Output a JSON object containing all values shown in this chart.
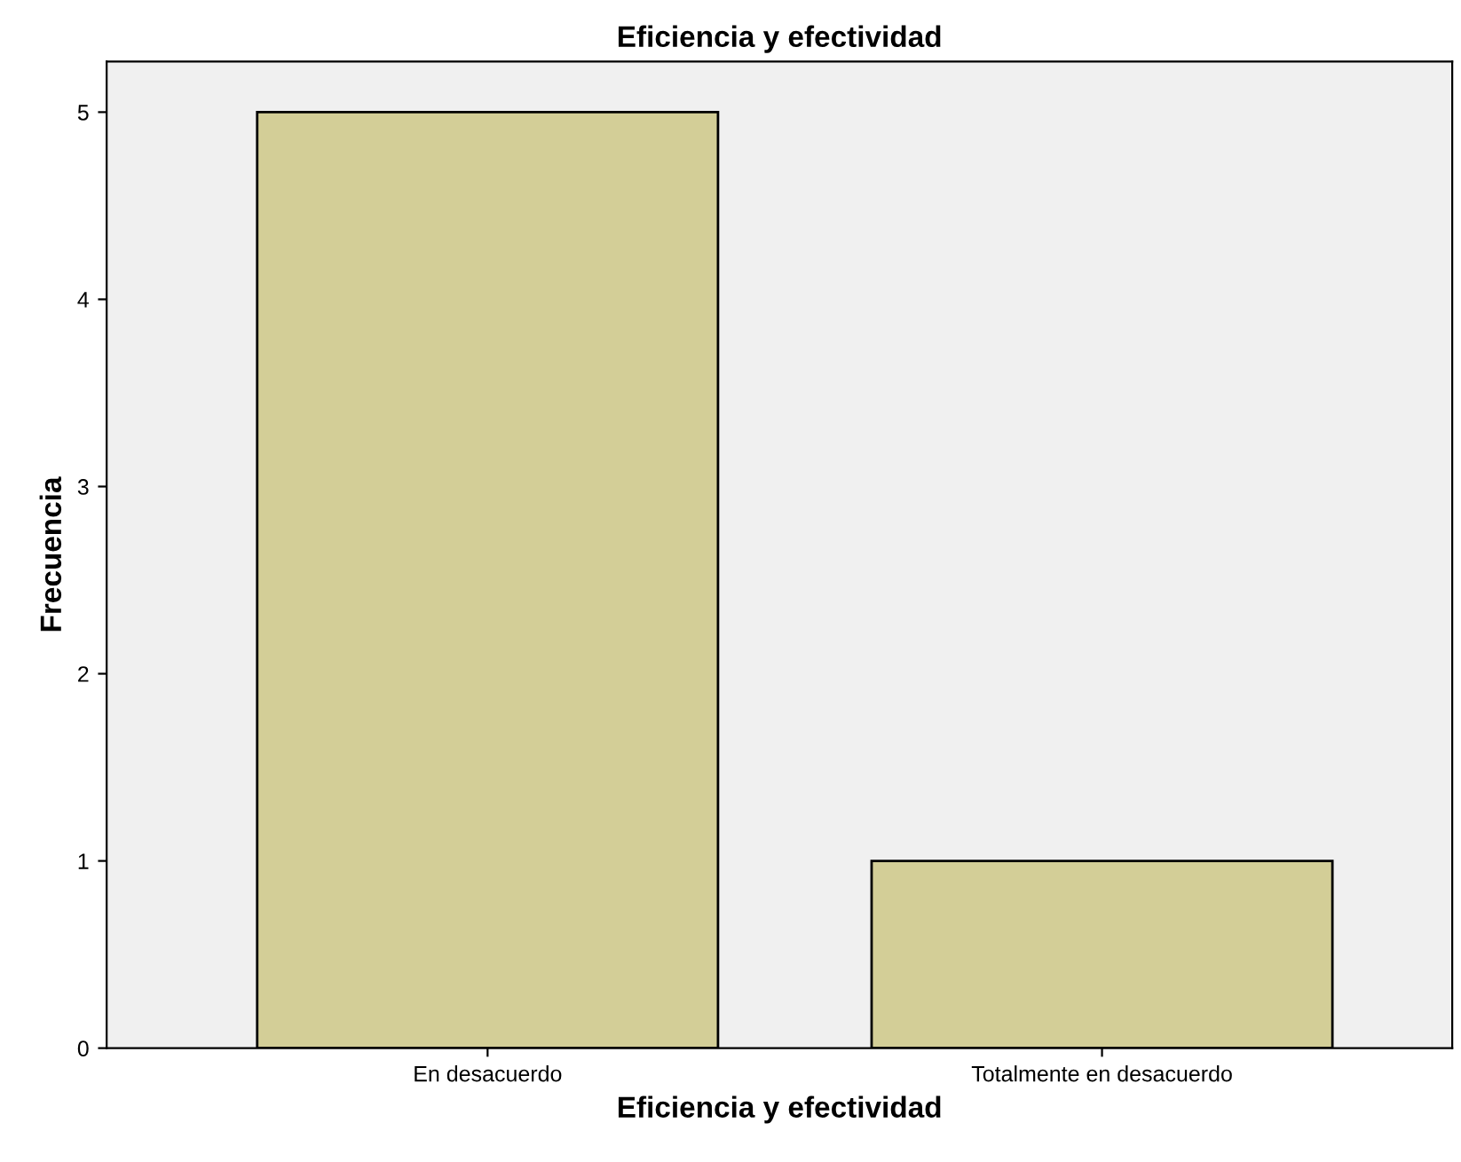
{
  "chart_data": {
    "type": "bar",
    "title": "Eficiencia y efectividad",
    "xlabel": "Eficiencia y efectividad",
    "ylabel": "Frecuencia",
    "categories": [
      "En desacuerdo",
      "Totalmente en desacuerdo"
    ],
    "values": [
      5,
      1
    ],
    "color": "#d3ce97",
    "ylim": [
      0,
      5.27
    ],
    "yticks": [
      0,
      1,
      2,
      3,
      4,
      5
    ],
    "grid": false
  }
}
